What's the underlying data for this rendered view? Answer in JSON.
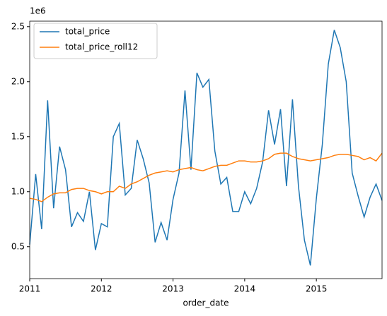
{
  "chart_data": {
    "type": "line",
    "offset_label": "1e6",
    "xlabel": "order_date",
    "x": [
      2011,
      2011.0833,
      2011.1667,
      2011.25,
      2011.3333,
      2011.4167,
      2011.5,
      2011.5833,
      2011.6667,
      2011.75,
      2011.8333,
      2011.9167,
      2012,
      2012.0833,
      2012.1667,
      2012.25,
      2012.3333,
      2012.4167,
      2012.5,
      2012.5833,
      2012.6667,
      2012.75,
      2012.8333,
      2012.9167,
      2013,
      2013.0833,
      2013.1667,
      2013.25,
      2013.3333,
      2013.4167,
      2013.5,
      2013.5833,
      2013.6667,
      2013.75,
      2013.8333,
      2013.9167,
      2014,
      2014.0833,
      2014.1667,
      2014.25,
      2014.3333,
      2014.4167,
      2014.5,
      2014.5833,
      2014.6667,
      2014.75,
      2014.8333,
      2014.9167,
      2015,
      2015.0833,
      2015.1667,
      2015.25,
      2015.3333,
      2015.4167,
      2015.5,
      2015.5833,
      2015.6667,
      2015.75,
      2015.8333,
      2015.9167
    ],
    "series": [
      {
        "name": "total_price",
        "color": "#1f77b4",
        "values": [
          0.52,
          1.16,
          0.66,
          1.83,
          0.85,
          1.41,
          1.2,
          0.68,
          0.81,
          0.73,
          1.0,
          0.47,
          0.71,
          0.68,
          1.5,
          1.62,
          0.97,
          1.03,
          1.47,
          1.3,
          1.08,
          0.54,
          0.72,
          0.56,
          0.93,
          1.17,
          1.92,
          1.2,
          2.08,
          1.95,
          2.02,
          1.37,
          1.07,
          1.13,
          0.82,
          0.82,
          1.0,
          0.89,
          1.03,
          1.27,
          1.74,
          1.43,
          1.75,
          1.05,
          1.84,
          1.05,
          0.56,
          0.33,
          0.94,
          1.43,
          2.16,
          2.47,
          2.31,
          2.0,
          1.17,
          0.96,
          0.77,
          0.95,
          1.07,
          0.92
        ]
      },
      {
        "name": "total_price_roll12",
        "color": "#ff7f0e",
        "values": [
          0.94,
          0.93,
          0.91,
          0.95,
          0.98,
          0.99,
          0.99,
          1.02,
          1.03,
          1.03,
          1.01,
          1.0,
          0.98,
          1.0,
          1.0,
          1.05,
          1.03,
          1.07,
          1.09,
          1.12,
          1.15,
          1.17,
          1.18,
          1.19,
          1.18,
          1.2,
          1.21,
          1.22,
          1.2,
          1.19,
          1.21,
          1.23,
          1.24,
          1.24,
          1.26,
          1.28,
          1.28,
          1.27,
          1.27,
          1.28,
          1.3,
          1.34,
          1.35,
          1.35,
          1.32,
          1.3,
          1.29,
          1.28,
          1.29,
          1.3,
          1.31,
          1.33,
          1.34,
          1.34,
          1.33,
          1.32,
          1.29,
          1.31,
          1.28,
          1.35
        ]
      }
    ],
    "xlim": [
      2011,
      2015.9167
    ],
    "xticks": [
      2011,
      2012,
      2013,
      2014,
      2015
    ],
    "ylim": [
      0.21,
      2.55
    ],
    "yticks": [
      0.5,
      {
        "value": 1,
        "label": "1.0"
      },
      1.5,
      {
        "value": 2,
        "label": "2.0"
      },
      2.5
    ],
    "legend": "upper left"
  }
}
